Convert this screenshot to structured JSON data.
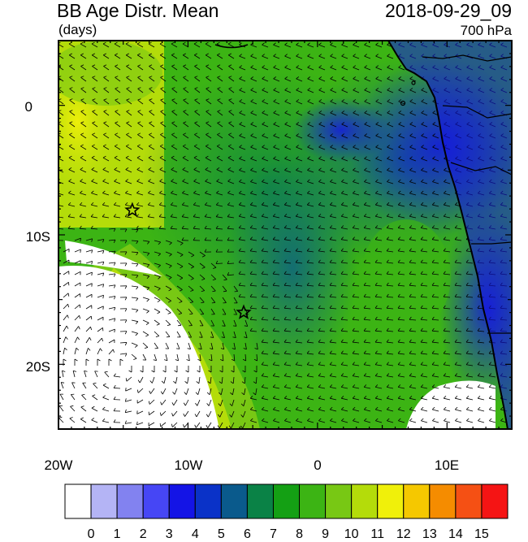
{
  "header": {
    "title": "BB Age Distr. Mean",
    "units": "(days)",
    "datetime": "2018-09-29_09",
    "level": "700 hPa"
  },
  "axes": {
    "x_ticks": [
      {
        "value": -20,
        "label": "20W"
      },
      {
        "value": -10,
        "label": "10W"
      },
      {
        "value": 0,
        "label": "0"
      },
      {
        "value": 10,
        "label": "10E"
      }
    ],
    "y_ticks": [
      {
        "value": 0,
        "label": "0"
      },
      {
        "value": -10,
        "label": "10S"
      },
      {
        "value": -20,
        "label": "20S"
      }
    ],
    "lon_range": [
      -20,
      15
    ],
    "lat_range": [
      -25,
      5
    ]
  },
  "colorbar": {
    "labels": [
      "0",
      "1",
      "2",
      "3",
      "4",
      "5",
      "6",
      "7",
      "8",
      "9",
      "10",
      "11",
      "12",
      "13",
      "14",
      "15"
    ],
    "colors": [
      "#ffffff",
      "#b4b4f5",
      "#8282f0",
      "#4646f5",
      "#1414e6",
      "#0a32c8",
      "#0a5a8c",
      "#0a8246",
      "#14a014",
      "#3cb414",
      "#78c814",
      "#b4dc0a",
      "#f0f00a",
      "#f5c800",
      "#f58c00",
      "#f55014",
      "#f51414"
    ]
  },
  "markers": [
    {
      "name": "star",
      "lon": -14.3,
      "lat": -8.1
    },
    {
      "name": "star",
      "lon": -5.7,
      "lat": -16.0
    }
  ]
}
